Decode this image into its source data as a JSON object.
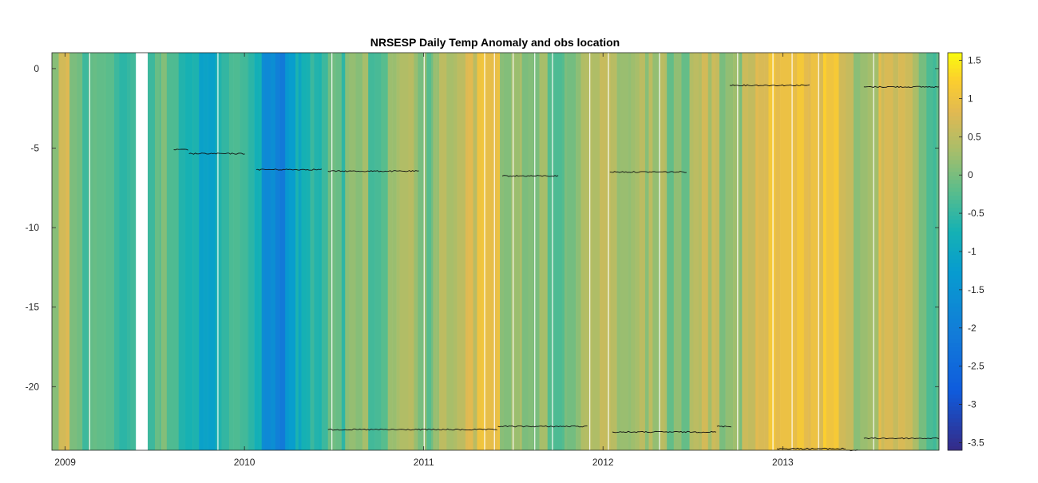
{
  "chart_data": {
    "type": "heatmap",
    "title": "NRSESP Daily Temp Anomaly and obs location",
    "xlabel": "",
    "ylabel": "",
    "x_ticks": [
      "2009",
      "2010",
      "2011",
      "2012",
      "2013"
    ],
    "y_ticks": [
      "0",
      "-5",
      "-10",
      "-15",
      "-20"
    ],
    "xlim": [
      "2008-12-05",
      "2013-11-15"
    ],
    "ylim": [
      -24,
      1
    ],
    "grid": false,
    "colorbar": {
      "colormap": "parula",
      "clim": [
        -3.6,
        1.6
      ],
      "ticks": [
        "1.5",
        "1",
        "0.5",
        "0",
        "-0.5",
        "-1",
        "-1.5",
        "-2",
        "-2.5",
        "-3",
        "-3.5"
      ]
    },
    "anomaly_segments": [
      {
        "start": "2008-12-05",
        "end": "2008-12-20",
        "value": 0.2
      },
      {
        "start": "2008-12-20",
        "end": "2009-01-10",
        "value": 0.6
      },
      {
        "start": "2009-01-10",
        "end": "2009-02-05",
        "value": 0.1
      },
      {
        "start": "2009-02-05",
        "end": "2009-02-28",
        "value": -0.3
      },
      {
        "start": "2009-02-28",
        "end": "2009-03-25",
        "value": -0.1
      },
      {
        "start": "2009-03-25",
        "end": "2009-05-25",
        "value": -0.4
      },
      {
        "start": "2009-06-18",
        "end": "2009-07-15",
        "value": -0.3
      },
      {
        "start": "2009-07-15",
        "end": "2009-08-20",
        "value": -0.1
      },
      {
        "start": "2009-08-20",
        "end": "2009-09-20",
        "value": -0.6
      },
      {
        "start": "2009-09-20",
        "end": "2009-11-05",
        "value": -0.9
      },
      {
        "start": "2009-11-05",
        "end": "2009-12-10",
        "value": -0.5
      },
      {
        "start": "2009-12-10",
        "end": "2010-01-10",
        "value": -0.4
      },
      {
        "start": "2010-01-10",
        "end": "2010-02-05",
        "value": -0.8
      },
      {
        "start": "2010-02-05",
        "end": "2010-03-05",
        "value": -1.7
      },
      {
        "start": "2010-03-05",
        "end": "2010-03-25",
        "value": -2.1
      },
      {
        "start": "2010-03-25",
        "end": "2010-04-15",
        "value": -1.4
      },
      {
        "start": "2010-04-15",
        "end": "2010-05-15",
        "value": -0.9
      },
      {
        "start": "2010-05-15",
        "end": "2010-06-20",
        "value": -0.6
      },
      {
        "start": "2010-06-20",
        "end": "2010-07-25",
        "value": -0.3
      },
      {
        "start": "2010-07-25",
        "end": "2010-09-10",
        "value": 0.1
      },
      {
        "start": "2010-09-10",
        "end": "2010-10-20",
        "value": -0.2
      },
      {
        "start": "2010-10-20",
        "end": "2010-12-20",
        "value": 0.3
      },
      {
        "start": "2010-12-20",
        "end": "2011-01-20",
        "value": 0.0
      },
      {
        "start": "2011-01-20",
        "end": "2011-03-10",
        "value": 0.4
      },
      {
        "start": "2011-03-10",
        "end": "2011-04-20",
        "value": 0.6
      },
      {
        "start": "2011-04-20",
        "end": "2011-06-05",
        "value": 0.9
      },
      {
        "start": "2011-06-05",
        "end": "2011-07-20",
        "value": 0.3
      },
      {
        "start": "2011-07-20",
        "end": "2011-09-10",
        "value": 0.1
      },
      {
        "start": "2011-09-10",
        "end": "2011-10-20",
        "value": -0.2
      },
      {
        "start": "2011-10-20",
        "end": "2011-12-10",
        "value": 0.2
      },
      {
        "start": "2011-12-10",
        "end": "2012-02-05",
        "value": 0.4
      },
      {
        "start": "2012-02-05",
        "end": "2012-03-15",
        "value": 0.1
      },
      {
        "start": "2012-03-15",
        "end": "2012-05-10",
        "value": 0.3
      },
      {
        "start": "2012-05-10",
        "end": "2012-06-25",
        "value": 0.0
      },
      {
        "start": "2012-06-25",
        "end": "2012-08-25",
        "value": 0.5
      },
      {
        "start": "2012-08-25",
        "end": "2012-10-10",
        "value": 0.2
      },
      {
        "start": "2012-10-10",
        "end": "2012-11-25",
        "value": 0.6
      },
      {
        "start": "2012-11-25",
        "end": "2013-01-30",
        "value": 0.9
      },
      {
        "start": "2013-01-30",
        "end": "2013-04-25",
        "value": 1.0
      },
      {
        "start": "2013-04-25",
        "end": "2013-05-25",
        "value": 0.5
      },
      {
        "start": "2013-05-25",
        "end": "2013-07-15",
        "value": 0.3
      },
      {
        "start": "2013-07-15",
        "end": "2013-08-25",
        "value": 0.8
      },
      {
        "start": "2013-08-25",
        "end": "2013-10-05",
        "value": 0.5
      },
      {
        "start": "2013-10-05",
        "end": "2013-11-15",
        "value": -0.2
      }
    ],
    "data_gaps": [
      {
        "start": "2009-05-25",
        "end": "2009-06-18"
      }
    ],
    "series": [
      {
        "start": "2009-08-10",
        "end": "2009-09-10",
        "depth": -5.1
      },
      {
        "start": "2009-09-10",
        "end": "2010-01-03",
        "depth": -5.35
      },
      {
        "start": "2010-01-25",
        "end": "2010-06-10",
        "depth": -6.35
      },
      {
        "start": "2010-06-20",
        "end": "2010-12-25",
        "depth": -6.45
      },
      {
        "start": "2011-06-10",
        "end": "2011-10-05",
        "depth": -6.75
      },
      {
        "start": "2012-01-15",
        "end": "2012-06-20",
        "depth": -6.5
      },
      {
        "start": "2012-09-15",
        "end": "2013-02-25",
        "depth": -1.05
      },
      {
        "start": "2013-06-15",
        "end": "2013-11-15",
        "depth": -1.15
      },
      {
        "start": "2010-06-20",
        "end": "2011-06-01",
        "depth": -22.7
      },
      {
        "start": "2011-06-01",
        "end": "2011-12-01",
        "depth": -22.5
      },
      {
        "start": "2012-01-20",
        "end": "2012-08-20",
        "depth": -22.85
      },
      {
        "start": "2012-08-20",
        "end": "2012-09-20",
        "depth": -22.5
      },
      {
        "start": "2012-12-20",
        "end": "2013-05-10",
        "depth": -23.9
      },
      {
        "start": "2013-05-10",
        "end": "2013-06-05",
        "depth": -24.0
      },
      {
        "start": "2013-06-15",
        "end": "2013-11-15",
        "depth": -23.25
      }
    ]
  }
}
